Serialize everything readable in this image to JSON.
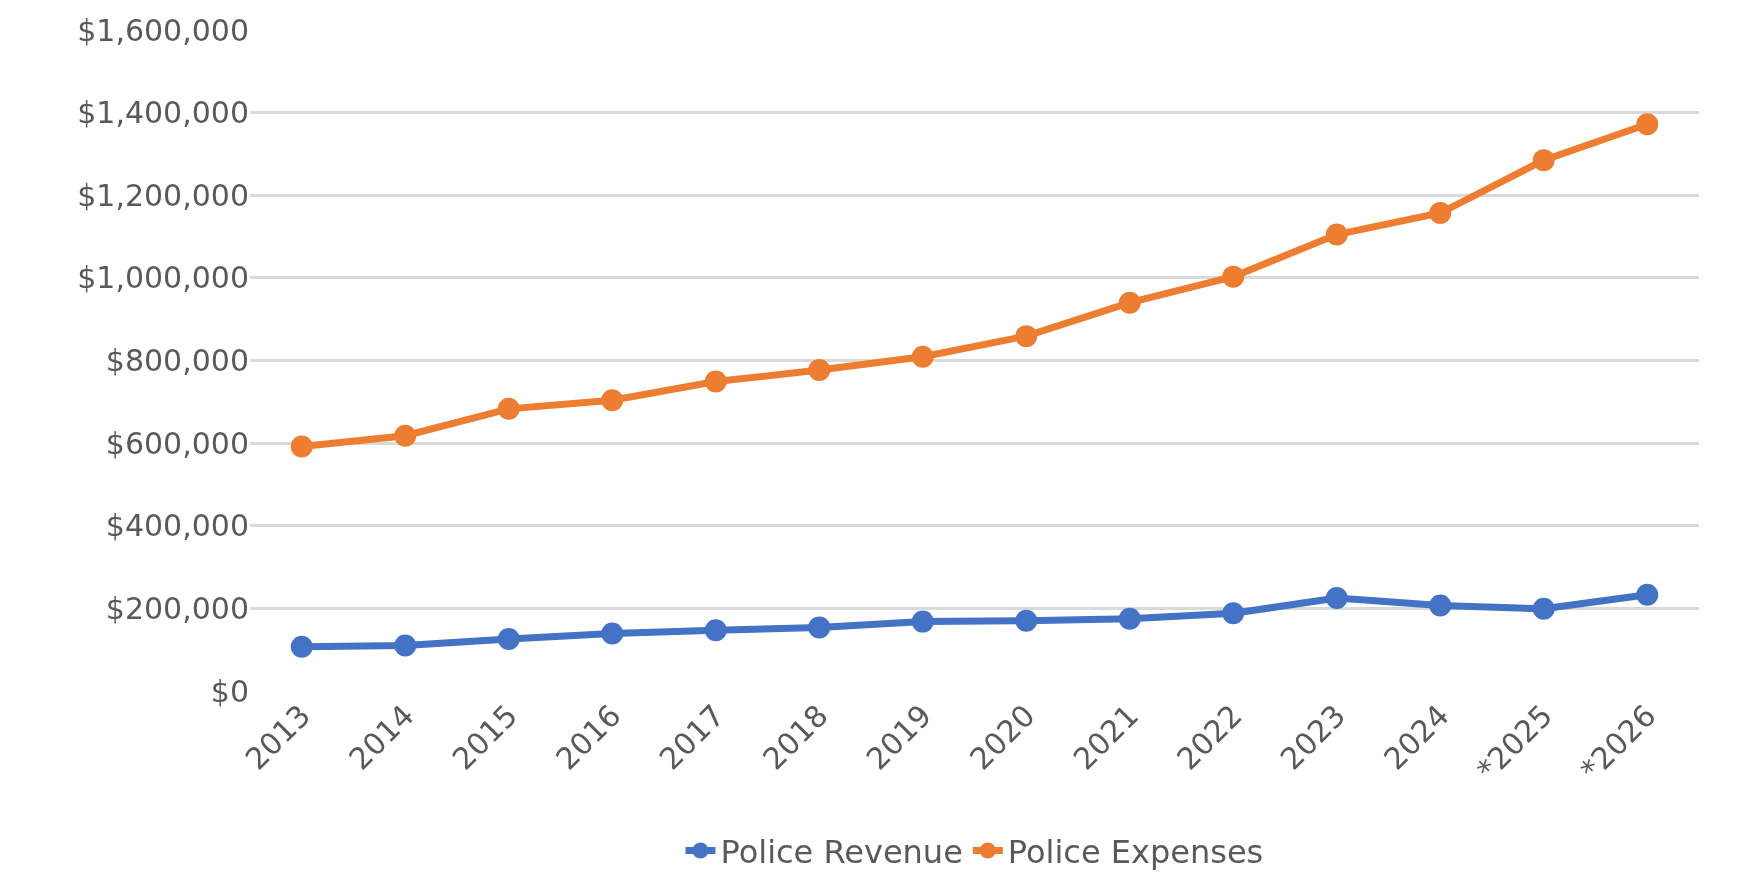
{
  "chart_data": {
    "type": "line",
    "categories": [
      "2013",
      "2014",
      "2015",
      "2016",
      "2017",
      "2018",
      "2019",
      "2020",
      "2021",
      "2022",
      "2023",
      "2024",
      "*2025",
      "*2026"
    ],
    "series": [
      {
        "name": "Police Revenue",
        "color": "#4472c4",
        "values": [
          107000,
          110000,
          126000,
          139000,
          147000,
          154000,
          168000,
          170000,
          175000,
          188000,
          225000,
          207000,
          199000,
          233000
        ]
      },
      {
        "name": "Police Expenses",
        "color": "#ed7d31",
        "values": [
          592000,
          618000,
          683000,
          704000,
          749000,
          777000,
          809000,
          859000,
          940000,
          1003000,
          1105000,
          1157000,
          1285000,
          1372000
        ]
      }
    ],
    "ylim": [
      0,
      1600000
    ],
    "yticks": [
      {
        "value": 0,
        "label": "$0"
      },
      {
        "value": 200000,
        "label": "$200,000"
      },
      {
        "value": 400000,
        "label": "$400,000"
      },
      {
        "value": 600000,
        "label": "$600,000"
      },
      {
        "value": 800000,
        "label": "$800,000"
      },
      {
        "value": 1000000,
        "label": "$1,000,000"
      },
      {
        "value": 1200000,
        "label": "$1,200,000"
      },
      {
        "value": 1400000,
        "label": "$1,400,000"
      },
      {
        "value": 1600000,
        "label": "$1,600,000"
      }
    ],
    "grid": "y",
    "legend": "bottom",
    "marker": "circle",
    "line_style": "solid"
  }
}
